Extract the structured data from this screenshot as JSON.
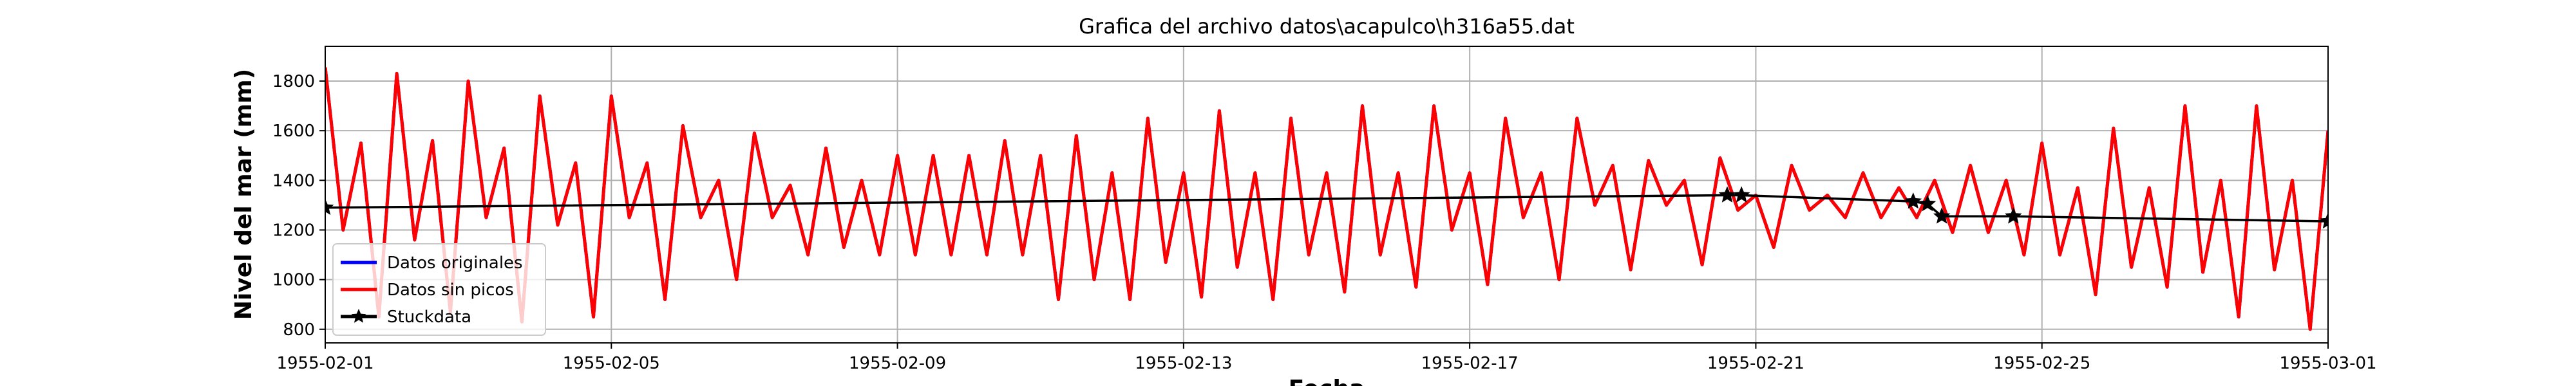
{
  "chart_data": {
    "type": "line",
    "title": "Grafica del archivo datos\\acapulco\\h316a55.dat",
    "xlabel": "Fecha",
    "ylabel": "Nivel del mar (mm)",
    "x": [
      0,
      0.25,
      0.5,
      0.75,
      1,
      1.25,
      1.5,
      1.75,
      2,
      2.25,
      2.5,
      2.75,
      3,
      3.25,
      3.5,
      3.75,
      4,
      4.25,
      4.5,
      4.75,
      5,
      5.25,
      5.5,
      5.75,
      6,
      6.25,
      6.5,
      6.75,
      7,
      7.25,
      7.5,
      7.75,
      8,
      8.25,
      8.5,
      8.75,
      9,
      9.25,
      9.5,
      9.75,
      10,
      10.25,
      10.5,
      10.75,
      11,
      11.25,
      11.5,
      11.75,
      12,
      12.25,
      12.5,
      12.75,
      13,
      13.25,
      13.5,
      13.75,
      14,
      14.25,
      14.5,
      14.75,
      15,
      15.25,
      15.5,
      15.75,
      16,
      16.25,
      16.5,
      16.75,
      17,
      17.25,
      17.5,
      17.75,
      18,
      18.25,
      18.5,
      18.75,
      19,
      19.25,
      19.5,
      19.75,
      20,
      20.25,
      20.5,
      20.75,
      21,
      21.25,
      21.5,
      21.75,
      22,
      22.25,
      22.5,
      22.75,
      23,
      23.25,
      23.5,
      23.75,
      24,
      24.25,
      24.5,
      24.75,
      25,
      25.25,
      25.5,
      25.75,
      26,
      26.25,
      26.5,
      26.75,
      27,
      27.25,
      27.5,
      27.75,
      28
    ],
    "series": [
      {
        "name": "Datos originales",
        "color": "#0000ff",
        "values": [
          1855,
          1200,
          1550,
          850,
          1830,
          1160,
          1560,
          870,
          1800,
          1250,
          1530,
          830,
          1740,
          1220,
          1470,
          850,
          1740,
          1250,
          1470,
          920,
          1620,
          1250,
          1400,
          1000,
          1590,
          1250,
          1380,
          1100,
          1530,
          1130,
          1400,
          1100,
          1500,
          1100,
          1500,
          1100,
          1500,
          1100,
          1560,
          1100,
          1500,
          920,
          1580,
          1000,
          1430,
          920,
          1650,
          1070,
          1430,
          930,
          1680,
          1050,
          1430,
          920,
          1650,
          1100,
          1430,
          950,
          1700,
          1100,
          1430,
          970,
          1700,
          1200,
          1430,
          980,
          1650,
          1250,
          1430,
          1000,
          1650,
          1300,
          1460,
          1040,
          1480,
          1300,
          1400,
          1060,
          1490,
          1280,
          1340,
          1130,
          1460,
          1280,
          1340,
          1250,
          1430,
          1250,
          1370,
          1250,
          1400,
          1190,
          1460,
          1190,
          1400,
          1100,
          1550,
          1100,
          1370,
          940,
          1610,
          1050,
          1370,
          970,
          1700,
          1030,
          1400,
          850,
          1700,
          1040,
          1400,
          800,
          1600
        ]
      },
      {
        "name": "Datos sin picos",
        "color": "#ff0000",
        "values": [
          1855,
          1200,
          1550,
          850,
          1830,
          1160,
          1560,
          870,
          1800,
          1250,
          1530,
          830,
          1740,
          1220,
          1470,
          850,
          1740,
          1250,
          1470,
          920,
          1620,
          1250,
          1400,
          1000,
          1590,
          1250,
          1380,
          1100,
          1530,
          1130,
          1400,
          1100,
          1500,
          1100,
          1500,
          1100,
          1500,
          1100,
          1560,
          1100,
          1500,
          920,
          1580,
          1000,
          1430,
          920,
          1650,
          1070,
          1430,
          930,
          1680,
          1050,
          1430,
          920,
          1650,
          1100,
          1430,
          950,
          1700,
          1100,
          1430,
          970,
          1700,
          1200,
          1430,
          980,
          1650,
          1250,
          1430,
          1000,
          1650,
          1300,
          1460,
          1040,
          1480,
          1300,
          1400,
          1060,
          1490,
          1280,
          1340,
          1130,
          1460,
          1280,
          1340,
          1250,
          1430,
          1250,
          1370,
          1250,
          1400,
          1190,
          1460,
          1190,
          1400,
          1100,
          1550,
          1100,
          1370,
          940,
          1610,
          1050,
          1370,
          970,
          1700,
          1030,
          1400,
          850,
          1700,
          1040,
          1400,
          800,
          1600
        ]
      },
      {
        "name": "Stuckdata",
        "color": "#000000",
        "marker": "star",
        "x": [
          0,
          19.6,
          19.8,
          22.2,
          22.4,
          22.6,
          23.6,
          28
        ],
        "values": [
          1290,
          1340,
          1340,
          1315,
          1305,
          1255,
          1255,
          1235
        ]
      }
    ],
    "xlim": [
      0,
      28
    ],
    "xticks": [
      {
        "value": 0,
        "label": "1955-02-01"
      },
      {
        "value": 4,
        "label": "1955-02-05"
      },
      {
        "value": 8,
        "label": "1955-02-09"
      },
      {
        "value": 12,
        "label": "1955-02-13"
      },
      {
        "value": 16,
        "label": "1955-02-17"
      },
      {
        "value": 20,
        "label": "1955-02-21"
      },
      {
        "value": 24,
        "label": "1955-02-25"
      },
      {
        "value": 28,
        "label": "1955-03-01"
      }
    ],
    "ylim": [
      745,
      1940
    ],
    "yticks": [
      800,
      1000,
      1200,
      1400,
      1600,
      1800
    ],
    "grid": true,
    "legend": "lower left"
  }
}
